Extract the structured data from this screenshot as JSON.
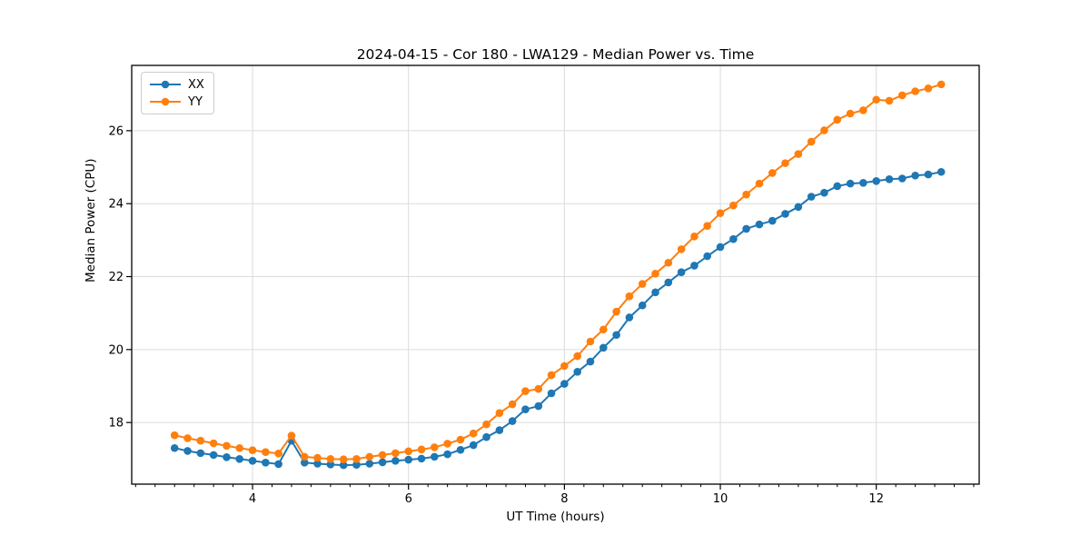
{
  "figure": {
    "title": "2024-04-15 - Cor 180 - LWA129 - Median Power vs. Time"
  },
  "chart_data": {
    "type": "line",
    "title": "2024-04-15 - Cor 180 - LWA129 - Median Power vs. Time",
    "xlabel": "UT Time (hours)",
    "ylabel": "Median Power (CPU)",
    "xlim": [
      2.45,
      13.32
    ],
    "ylim": [
      16.31,
      27.79
    ],
    "xticks": [
      4,
      6,
      8,
      10,
      12
    ],
    "yticks": [
      18,
      20,
      22,
      24,
      26
    ],
    "x_minor_tick_step": 0.25,
    "grid": true,
    "grid_color": "#dcdcdc",
    "legend_position": "upper left",
    "marker": "o",
    "x": [
      3.0,
      3.167,
      3.333,
      3.5,
      3.667,
      3.833,
      4.0,
      4.167,
      4.333,
      4.5,
      4.667,
      4.833,
      5.0,
      5.167,
      5.333,
      5.5,
      5.667,
      5.833,
      6.0,
      6.167,
      6.333,
      6.5,
      6.667,
      6.833,
      7.0,
      7.167,
      7.333,
      7.5,
      7.667,
      7.833,
      8.0,
      8.167,
      8.333,
      8.5,
      8.667,
      8.833,
      9.0,
      9.167,
      9.333,
      9.5,
      9.667,
      9.833,
      10.0,
      10.167,
      10.333,
      10.5,
      10.667,
      10.833,
      11.0,
      11.167,
      11.333,
      11.5,
      11.667,
      11.833,
      12.0,
      12.167,
      12.333,
      12.5,
      12.667,
      12.833
    ],
    "series": [
      {
        "name": "XX",
        "color": "#1f77b4",
        "values": [
          17.3,
          17.22,
          17.16,
          17.11,
          17.05,
          17.0,
          16.95,
          16.9,
          16.86,
          17.5,
          16.9,
          16.87,
          16.85,
          16.83,
          16.84,
          16.87,
          16.91,
          16.95,
          16.98,
          17.01,
          17.06,
          17.13,
          17.25,
          17.38,
          17.6,
          17.79,
          18.04,
          18.36,
          18.45,
          18.8,
          19.06,
          19.39,
          19.67,
          20.05,
          20.4,
          20.88,
          21.21,
          21.57,
          21.84,
          22.12,
          22.3,
          22.56,
          22.81,
          23.03,
          23.31,
          23.43,
          23.53,
          23.72,
          23.91,
          24.19,
          24.3,
          24.48,
          24.55,
          24.57,
          24.62,
          24.67,
          24.69,
          24.77,
          24.8,
          24.87
        ]
      },
      {
        "name": "YY",
        "color": "#ff7f0e",
        "values": [
          17.65,
          17.57,
          17.5,
          17.43,
          17.36,
          17.3,
          17.24,
          17.19,
          17.15,
          17.64,
          17.06,
          17.03,
          17.0,
          16.99,
          17.0,
          17.06,
          17.11,
          17.16,
          17.21,
          17.26,
          17.32,
          17.42,
          17.53,
          17.7,
          17.95,
          18.26,
          18.5,
          18.86,
          18.92,
          19.3,
          19.55,
          19.82,
          20.22,
          20.55,
          21.04,
          21.46,
          21.8,
          22.08,
          22.38,
          22.75,
          23.1,
          23.39,
          23.74,
          23.95,
          24.25,
          24.55,
          24.84,
          25.11,
          25.36,
          25.7,
          26.01,
          26.3,
          26.47,
          26.56,
          26.85,
          26.82,
          26.97,
          27.08,
          27.16,
          27.27
        ]
      }
    ]
  }
}
